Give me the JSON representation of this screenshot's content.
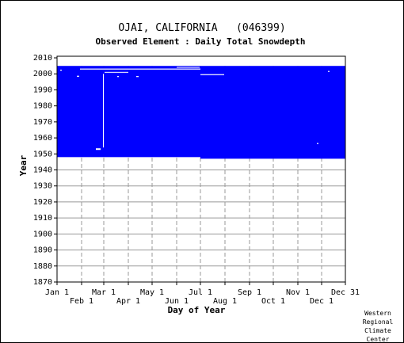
{
  "chart_data": {
    "type": "heatmap",
    "title": "OJAI, CALIFORNIA   (046399)",
    "subtitle": "Observed Element : Daily Total Snowdepth",
    "xlabel": "Day of Year",
    "ylabel": "Year",
    "xlim": [
      1,
      365
    ],
    "ylim": [
      1870,
      2011
    ],
    "yticks": [
      1870,
      1880,
      1890,
      1900,
      1910,
      1920,
      1930,
      1940,
      1950,
      1960,
      1970,
      1980,
      1990,
      2000,
      2010
    ],
    "month_ticks": [
      {
        "label": "Jan 1",
        "day": 1,
        "row": "upper"
      },
      {
        "label": "Feb 1",
        "day": 32,
        "row": "lower"
      },
      {
        "label": "Mar 1",
        "day": 60,
        "row": "upper"
      },
      {
        "label": "Apr 1",
        "day": 91,
        "row": "lower"
      },
      {
        "label": "May 1",
        "day": 121,
        "row": "upper"
      },
      {
        "label": "Jun 1",
        "day": 152,
        "row": "lower"
      },
      {
        "label": "Jul 1",
        "day": 182,
        "row": "upper"
      },
      {
        "label": "Aug 1",
        "day": 213,
        "row": "lower"
      },
      {
        "label": "Sep 1",
        "day": 244,
        "row": "upper"
      },
      {
        "label": "Oct 1",
        "day": 274,
        "row": "lower"
      },
      {
        "label": "Nov 1",
        "day": 305,
        "row": "upper"
      },
      {
        "label": "Dec 1",
        "day": 335,
        "row": "lower"
      },
      {
        "label": "Dec 31",
        "day": 365,
        "row": "upper"
      }
    ],
    "grid": true,
    "colors": {
      "observed": "#0000ff",
      "missing": "#ffffff",
      "grid": "#999999"
    },
    "observed_blocks": [
      {
        "day_start": 1,
        "day_end": 182,
        "year_start": 1948,
        "year_end": 2005
      },
      {
        "day_start": 182,
        "day_end": 365,
        "year_start": 1947,
        "year_end": 2005
      }
    ],
    "missing_segments": [
      {
        "day_start": 1,
        "day_end": 365,
        "year_start": 2005,
        "year_end": 2011
      },
      {
        "day_start": 30,
        "day_end": 182,
        "year_start": 2002.7,
        "year_end": 2003.3
      },
      {
        "day_start": 61,
        "day_end": 91,
        "year_start": 2000.7,
        "year_end": 2001.2
      },
      {
        "day_start": 182,
        "day_end": 212,
        "year_start": 1999.2,
        "year_end": 1999.8
      },
      {
        "day_start": 152,
        "day_end": 181,
        "year_start": 2003.8,
        "year_end": 2004.3
      },
      {
        "day_start": 50,
        "day_end": 56,
        "year_start": 1952.5,
        "year_end": 1953.5
      },
      {
        "day_start": 77,
        "day_end": 79,
        "year_start": 1998,
        "year_end": 1998.6
      },
      {
        "day_start": 101,
        "day_end": 104,
        "year_start": 1998,
        "year_end": 1998.6
      },
      {
        "day_start": 26,
        "day_end": 29,
        "year_start": 1998.2,
        "year_end": 1998.8
      },
      {
        "day_start": 5,
        "day_end": 7,
        "year_start": 2002,
        "year_end": 2002.6
      },
      {
        "day_start": 343,
        "day_end": 345,
        "year_start": 2001.2,
        "year_end": 2001.8
      },
      {
        "day_start": 329,
        "day_end": 331,
        "year_start": 1956.2,
        "year_end": 1956.8
      },
      {
        "day_start": 59,
        "day_end": 60,
        "year_start": 1954,
        "year_end": 2000
      }
    ]
  },
  "credit": [
    "Western",
    "Regional",
    "Climate",
    "Center"
  ]
}
